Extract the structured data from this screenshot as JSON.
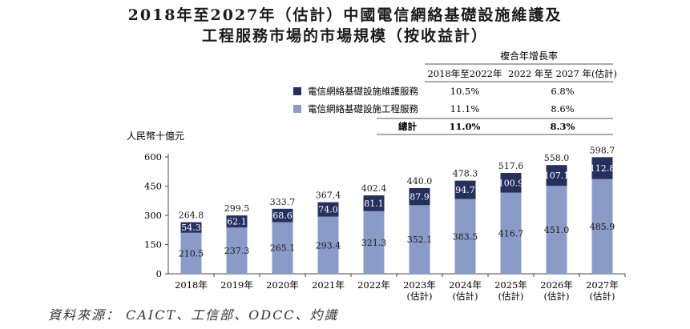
{
  "title_line1": "2018年至2027年（估計）中國電信網絡基礎設施維護及",
  "title_line2": "工程服務市場的市場規模（按收益計）",
  "source": "資料來源： CAICT、工信部、ODCC、灼識",
  "legend_table": {
    "header": "複合年增長率",
    "col1": "2018年至2022年",
    "col2": "2022 年至 2027 年(估計)",
    "rows": [
      {
        "label": "電信網絡基礎設施維護服務",
        "c1": "10.5%",
        "c2": "6.8%",
        "color": "#25305f"
      },
      {
        "label": "電信網絡基礎設施工程服務",
        "c1": "11.1%",
        "c2": "8.6%",
        "color": "#8b9bc8"
      }
    ],
    "total": {
      "label": "總計",
      "c1": "11.0%",
      "c2": "8.3%"
    }
  },
  "colors": {
    "maintenance": "#25305f",
    "engineering": "#8b9bc8",
    "axis": "#444444",
    "table_line": "#555555"
  },
  "chart_data": {
    "type": "bar",
    "stacked": true,
    "ylabel": "人民幣十億元",
    "ylim": [
      0,
      600
    ],
    "yticks": [
      "0",
      "150",
      "300",
      "450",
      "600"
    ],
    "categories": [
      "2018年",
      "2019年",
      "2020年",
      "2021年",
      "2022年",
      "2023年",
      "2024年",
      "2025年",
      "2026年",
      "2027年"
    ],
    "category_sub": [
      "",
      "",
      "",
      "",
      "",
      "(估計)",
      "(估計)",
      "(估計)",
      "(估計)",
      "(估計)"
    ],
    "series": [
      {
        "name": "電信網絡基礎設施工程服務",
        "values": [
          210.5,
          237.3,
          265.1,
          293.4,
          321.3,
          352.1,
          383.5,
          416.7,
          451.0,
          485.9
        ],
        "labels": [
          "210.5",
          "237.3",
          "265.1",
          "293.4",
          "321.3",
          "352.1",
          "383.5",
          "416.7",
          "451.0",
          "485.9"
        ]
      },
      {
        "name": "電信網絡基礎設施維護服務",
        "values": [
          54.3,
          62.1,
          68.6,
          74.0,
          81.1,
          87.9,
          94.7,
          100.9,
          107.1,
          112.8
        ],
        "labels": [
          "54.3",
          "62.1",
          "68.6",
          "74.0",
          "81.1",
          "87.9",
          "94.7",
          "100.9",
          "107.1",
          "112.8"
        ]
      }
    ],
    "totals": [
      264.8,
      299.5,
      333.7,
      367.4,
      402.4,
      440.0,
      478.3,
      517.6,
      558.0,
      598.7
    ],
    "total_labels": [
      "264.8",
      "299.5",
      "333.7",
      "367.4",
      "402.4",
      "440.0",
      "478.3",
      "517.6",
      "558.0",
      "598.7"
    ]
  }
}
